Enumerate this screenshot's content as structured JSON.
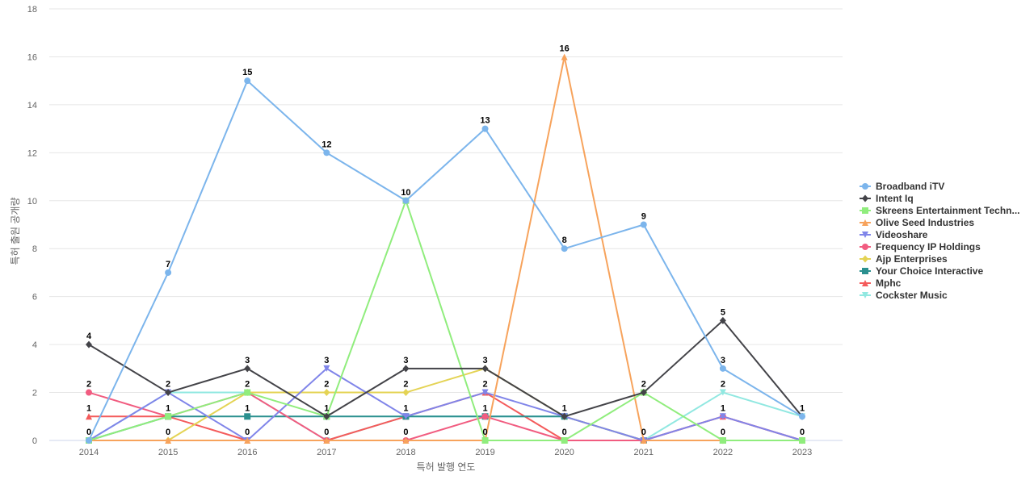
{
  "chart_data": {
    "type": "line",
    "title": "",
    "xlabel": "특허 발행 연도",
    "ylabel": "특허 출원 공개량",
    "ylim": [
      0,
      18
    ],
    "y_ticks": [
      0,
      2,
      4,
      6,
      8,
      10,
      12,
      14,
      16,
      18
    ],
    "x": [
      "2014",
      "2015",
      "2016",
      "2017",
      "2018",
      "2019",
      "2020",
      "2021",
      "2022",
      "2023"
    ],
    "grid": true,
    "legend_position": "right",
    "series": [
      {
        "name": "Broadband iTV",
        "color": "#7cb5ec",
        "marker": "circle",
        "values": [
          0,
          7,
          15,
          12,
          10,
          13,
          8,
          9,
          3,
          1
        ]
      },
      {
        "name": "Intent Iq",
        "color": "#434348",
        "marker": "diamond",
        "values": [
          4,
          2,
          3,
          1,
          3,
          3,
          1,
          2,
          5,
          1
        ]
      },
      {
        "name": "Skreens Entertainment Techn...",
        "color": "#90ed7d",
        "marker": "square",
        "values": [
          0,
          1,
          2,
          1,
          10,
          0,
          0,
          2,
          0,
          0
        ]
      },
      {
        "name": "Olive Seed Industries",
        "color": "#f7a35c",
        "marker": "triangle",
        "values": [
          0,
          0,
          0,
          0,
          0,
          0,
          16,
          0,
          0,
          0
        ]
      },
      {
        "name": "Videoshare",
        "color": "#8085e9",
        "marker": "triangle-down",
        "values": [
          0,
          2,
          0,
          3,
          1,
          2,
          1,
          0,
          1,
          0
        ]
      },
      {
        "name": "Frequency IP Holdings",
        "color": "#f15c80",
        "marker": "circle",
        "values": [
          2,
          1,
          2,
          0,
          0,
          1,
          0,
          0,
          1,
          0
        ]
      },
      {
        "name": "Ajp Enterprises",
        "color": "#e4d354",
        "marker": "diamond",
        "values": [
          0,
          0,
          2,
          2,
          2,
          3,
          1,
          0,
          0,
          0
        ]
      },
      {
        "name": "Your Choice Interactive",
        "color": "#2b908f",
        "marker": "square",
        "values": [
          0,
          1,
          1,
          1,
          1,
          1,
          1,
          0,
          0,
          0
        ]
      },
      {
        "name": "Mphc",
        "color": "#f45b5b",
        "marker": "triangle",
        "values": [
          1,
          1,
          0,
          0,
          1,
          2,
          0,
          0,
          1,
          0
        ]
      },
      {
        "name": "Cockster Music",
        "color": "#91e8e1",
        "marker": "triangle-down",
        "values": [
          0,
          2,
          2,
          0,
          1,
          1,
          1,
          0,
          2,
          1
        ]
      }
    ],
    "data_labels": {
      "2014": "0",
      "2014_4": "4",
      "2014_2": "2",
      "2014_1": "1"
    }
  }
}
